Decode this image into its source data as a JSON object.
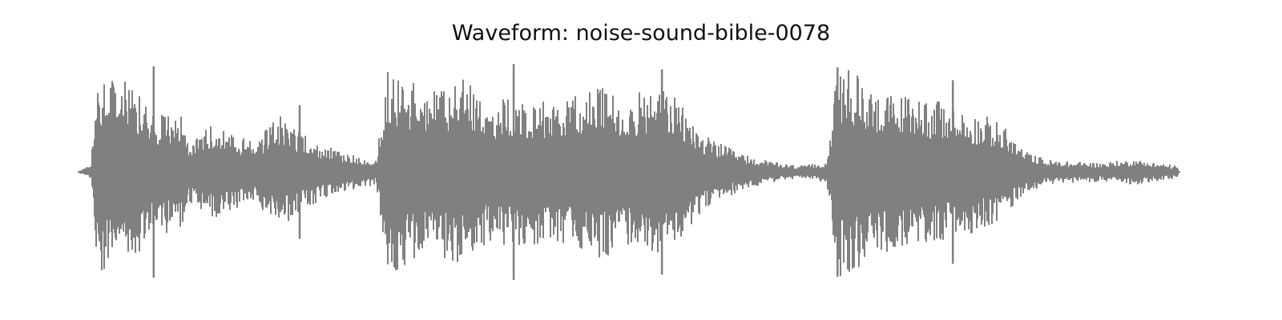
{
  "chart_data": {
    "type": "area",
    "title": "Waveform: noise-sound-bible-0078",
    "xlabel": "",
    "ylabel": "",
    "axes_visible": false,
    "grid": false,
    "legend": "none",
    "y_unit": "normalized amplitude",
    "ylim": [
      -1.0,
      1.0
    ],
    "color": "#808080",
    "x_fraction_of_duration": [
      0.0,
      0.01,
      0.015,
      0.03,
      0.05,
      0.07,
      0.09,
      0.1,
      0.12,
      0.14,
      0.16,
      0.18,
      0.2,
      0.23,
      0.25,
      0.27,
      0.275,
      0.28,
      0.3,
      0.32,
      0.35,
      0.37,
      0.4,
      0.43,
      0.45,
      0.47,
      0.5,
      0.53,
      0.55,
      0.57,
      0.6,
      0.62,
      0.64,
      0.66,
      0.68,
      0.69,
      0.7,
      0.72,
      0.74,
      0.76,
      0.79,
      0.82,
      0.84,
      0.86,
      0.88,
      0.9,
      0.93,
      0.96,
      1.0
    ],
    "envelope": [
      0.02,
      0.06,
      0.9,
      0.98,
      0.8,
      0.55,
      0.6,
      0.3,
      0.45,
      0.35,
      0.28,
      0.55,
      0.38,
      0.22,
      0.16,
      0.12,
      0.55,
      0.95,
      0.85,
      0.78,
      0.88,
      0.66,
      0.7,
      0.68,
      0.7,
      0.82,
      0.7,
      0.82,
      0.6,
      0.34,
      0.18,
      0.12,
      0.08,
      0.06,
      0.1,
      0.96,
      0.97,
      0.82,
      0.72,
      0.75,
      0.62,
      0.55,
      0.45,
      0.2,
      0.12,
      0.1,
      0.09,
      0.12,
      0.06
    ],
    "spikes": [
      {
        "x": 0.067,
        "y": 0.98
      },
      {
        "x": 0.2,
        "y": 0.62
      },
      {
        "x": 0.395,
        "y": 1.0
      },
      {
        "x": 0.53,
        "y": 0.95
      },
      {
        "x": 0.69,
        "y": 0.97
      },
      {
        "x": 0.795,
        "y": 0.85
      }
    ]
  }
}
